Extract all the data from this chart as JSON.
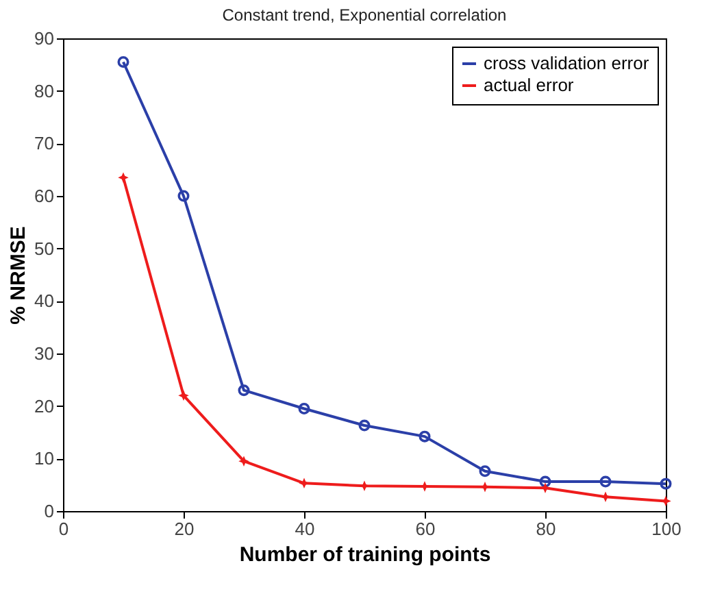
{
  "chart_data": {
    "type": "line",
    "title": "Constant trend, Exponential correlation",
    "xlabel": "Number of training points",
    "ylabel": "% NRMSE",
    "x": [
      10,
      20,
      30,
      40,
      50,
      60,
      70,
      80,
      90,
      100
    ],
    "series": [
      {
        "name": "cross validation error",
        "color": "#2b3fa8",
        "marker": "circle",
        "values": [
          85.5,
          60,
          23,
          19.5,
          16.3,
          14.2,
          7.6,
          5.6,
          5.6,
          5.2
        ]
      },
      {
        "name": "actual error",
        "color": "#ee1c1c",
        "marker": "star",
        "values": [
          63.5,
          22,
          9.5,
          5.3,
          4.8,
          4.7,
          4.6,
          4.4,
          2.7,
          1.9
        ]
      }
    ],
    "xlim": [
      0,
      100
    ],
    "xticks": [
      0,
      20,
      40,
      60,
      80,
      100
    ],
    "ylim": [
      0,
      90
    ],
    "yticks": [
      0,
      10,
      20,
      30,
      40,
      50,
      60,
      70,
      80,
      90
    ],
    "legend": "top right",
    "line_style": "solid",
    "grid": false
  }
}
